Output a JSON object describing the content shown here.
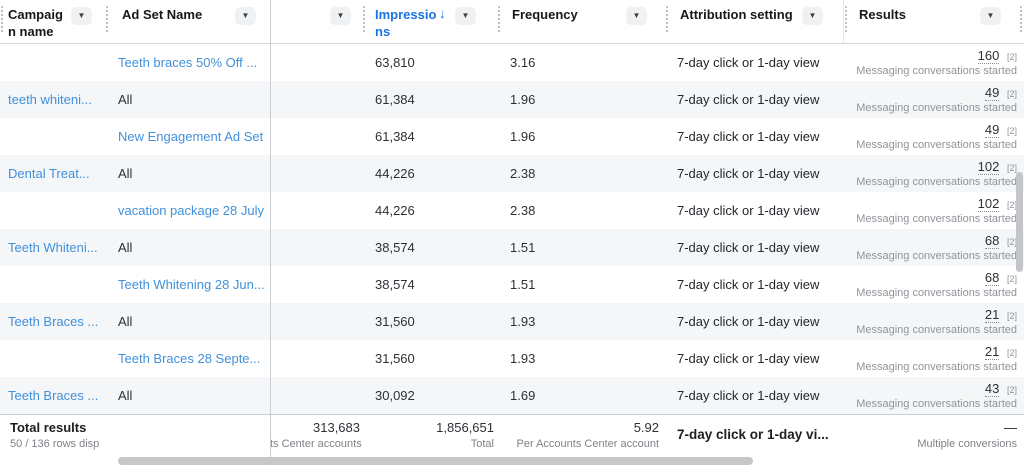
{
  "icons": {
    "caret": "▼",
    "sort_desc": "↓"
  },
  "colors": {
    "link_blue": "#4191db",
    "sorted_header_blue": "#1b74e4",
    "stripe": "#f5f6f7"
  },
  "header": {
    "columns": [
      {
        "id": "campaign",
        "label": "Campaign name"
      },
      {
        "id": "adset",
        "label": "Ad Set Name"
      },
      {
        "id": "blank",
        "label": ""
      },
      {
        "id": "impressions",
        "label": "Impressions",
        "sorted": "desc"
      },
      {
        "id": "frequency",
        "label": "Frequency"
      },
      {
        "id": "attribution",
        "label": "Attribution setting"
      },
      {
        "id": "results",
        "label": "Results"
      }
    ]
  },
  "rows": [
    {
      "campaign": "",
      "adset": "Teeth braces 50% Off ...",
      "adset_link": true,
      "impressions": "63,810",
      "frequency": "3.16",
      "attribution": "7-day click or 1-day view",
      "result_value": "160",
      "result_ref": "[2]",
      "result_label": "Messaging conversations started"
    },
    {
      "campaign": "teeth whiteni...",
      "adset": "All",
      "adset_link": false,
      "impressions": "61,384",
      "frequency": "1.96",
      "attribution": "7-day click or 1-day view",
      "result_value": "49",
      "result_ref": "[2]",
      "result_label": "Messaging conversations started"
    },
    {
      "campaign": "",
      "adset": "New Engagement Ad Set",
      "adset_link": true,
      "impressions": "61,384",
      "frequency": "1.96",
      "attribution": "7-day click or 1-day view",
      "result_value": "49",
      "result_ref": "[2]",
      "result_label": "Messaging conversations started"
    },
    {
      "campaign": "Dental Treat...",
      "adset": "All",
      "adset_link": false,
      "impressions": "44,226",
      "frequency": "2.38",
      "attribution": "7-day click or 1-day view",
      "result_value": "102",
      "result_ref": "[2]",
      "result_label": "Messaging conversations started"
    },
    {
      "campaign": "",
      "adset": "vacation package 28 July",
      "adset_link": true,
      "impressions": "44,226",
      "frequency": "2.38",
      "attribution": "7-day click or 1-day view",
      "result_value": "102",
      "result_ref": "[2]",
      "result_label": "Messaging conversations started"
    },
    {
      "campaign": "Teeth Whiteni...",
      "adset": "All",
      "adset_link": false,
      "impressions": "38,574",
      "frequency": "1.51",
      "attribution": "7-day click or 1-day view",
      "result_value": "68",
      "result_ref": "[2]",
      "result_label": "Messaging conversations started"
    },
    {
      "campaign": "",
      "adset": "Teeth Whitening 28 Jun...",
      "adset_link": true,
      "impressions": "38,574",
      "frequency": "1.51",
      "attribution": "7-day click or 1-day view",
      "result_value": "68",
      "result_ref": "[2]",
      "result_label": "Messaging conversations started"
    },
    {
      "campaign": "Teeth Braces ...",
      "adset": "All",
      "adset_link": false,
      "impressions": "31,560",
      "frequency": "1.93",
      "attribution": "7-day click or 1-day view",
      "result_value": "21",
      "result_ref": "[2]",
      "result_label": "Messaging conversations started"
    },
    {
      "campaign": "",
      "adset": "Teeth Braces 28 Septe...",
      "adset_link": true,
      "impressions": "31,560",
      "frequency": "1.93",
      "attribution": "7-day click or 1-day view",
      "result_value": "21",
      "result_ref": "[2]",
      "result_label": "Messaging conversations started"
    },
    {
      "campaign": "Teeth Braces ...",
      "adset": "All",
      "adset_link": false,
      "impressions": "30,092",
      "frequency": "1.69",
      "attribution": "7-day click or 1-day view",
      "result_value": "43",
      "result_ref": "[2]",
      "result_label": "Messaging conversations started"
    }
  ],
  "footer": {
    "title": "Total results",
    "subtitle": "50 / 136 rows disp",
    "accounts_value": "313,683",
    "accounts_label": "ts Center accounts",
    "impressions_value": "1,856,651",
    "impressions_label": "Total",
    "frequency_value": "5.92",
    "frequency_label": "Per Accounts Center account",
    "attribution_value": "7-day click or 1-day vi...",
    "results_value": "—",
    "results_label": "Multiple conversions"
  }
}
